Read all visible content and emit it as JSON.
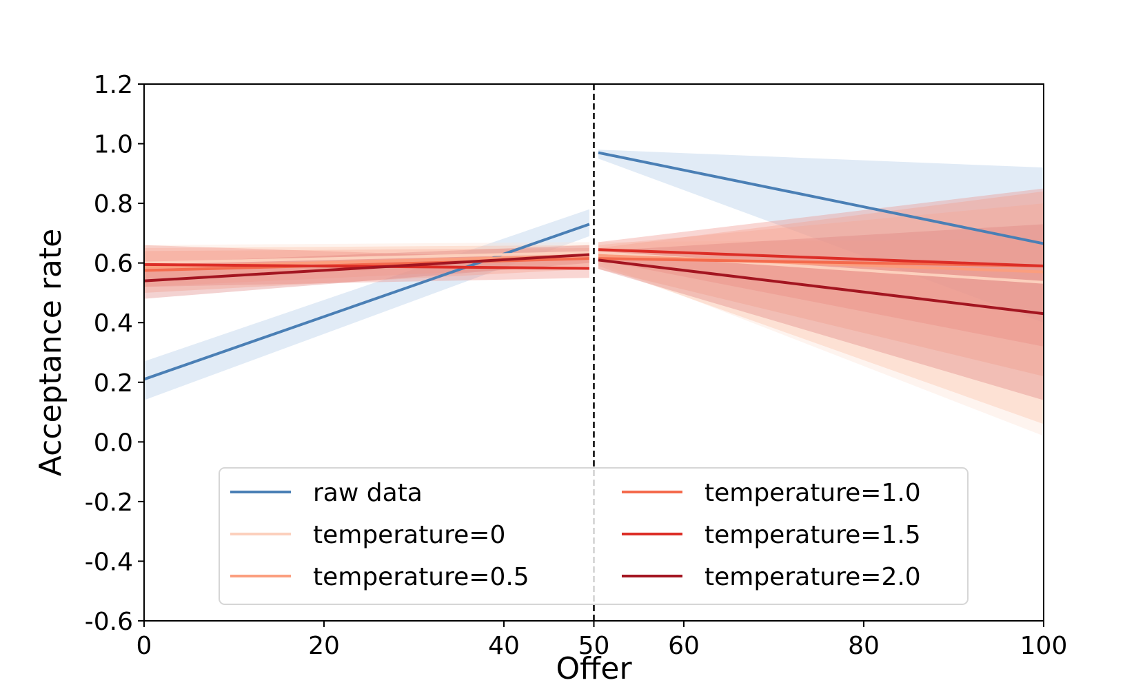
{
  "chart_data": {
    "type": "line",
    "xlabel": "Offer",
    "ylabel": "Acceptance rate",
    "xlim": [
      0,
      100
    ],
    "ylim": [
      -0.6,
      1.2
    ],
    "x_ticks": [
      0,
      20,
      40,
      50,
      60,
      80,
      100
    ],
    "y_ticks": [
      -0.6,
      -0.4,
      -0.2,
      0.0,
      0.2,
      0.4,
      0.6,
      0.8,
      1.0,
      1.2
    ],
    "x_tick_labels": [
      "0",
      "20",
      "40",
      "50",
      "60",
      "80",
      "100"
    ],
    "y_tick_labels": [
      "-0.6",
      "-0.4",
      "-0.2",
      "0.0",
      "0.2",
      "0.4",
      "0.6",
      "0.8",
      "1.0",
      "1.2"
    ],
    "vline": {
      "x": 50,
      "style": "dashed",
      "color": "#000000"
    },
    "grid": false,
    "legend": {
      "placement": "lower-center",
      "columns": 2
    },
    "series": [
      {
        "name": "raw data",
        "color": "#4a7fb5",
        "band_color": "#a9c6e6",
        "segments": [
          {
            "x": [
              0,
              49.5
            ],
            "y": [
              0.21,
              0.73
            ],
            "lower": [
              0.14,
              0.69
            ],
            "upper": [
              0.27,
              0.78
            ]
          },
          {
            "x": [
              50.5,
              100
            ],
            "y": [
              0.97,
              0.665
            ],
            "lower": [
              0.95,
              0.4
            ],
            "upper": [
              0.98,
              0.92
            ]
          }
        ]
      },
      {
        "name": "temperature=0",
        "color": "#fcd0bd",
        "band_color": "#fde0d2",
        "segments": [
          {
            "x": [
              0,
              49.5
            ],
            "y": [
              0.6,
              0.635
            ],
            "lower": [
              0.55,
              0.6
            ],
            "upper": [
              0.66,
              0.67
            ]
          },
          {
            "x": [
              50.5,
              100
            ],
            "y": [
              0.635,
              0.535
            ],
            "lower": [
              0.6,
              0.02
            ],
            "upper": [
              0.67,
              0.68
            ]
          }
        ]
      },
      {
        "name": "temperature=0.5",
        "color": "#fb9e7e",
        "band_color": "#fcbca4",
        "segments": [
          {
            "x": [
              0,
              49.5
            ],
            "y": [
              0.585,
              0.625
            ],
            "lower": [
              0.52,
              0.59
            ],
            "upper": [
              0.65,
              0.66
            ]
          },
          {
            "x": [
              50.5,
              100
            ],
            "y": [
              0.625,
              0.57
            ],
            "lower": [
              0.59,
              0.06
            ],
            "upper": [
              0.66,
              0.8
            ]
          }
        ]
      },
      {
        "name": "temperature=1.0",
        "color": "#f46a4c",
        "band_color": "#f9a68e",
        "segments": [
          {
            "x": [
              0,
              49.5
            ],
            "y": [
              0.575,
              0.615
            ],
            "lower": [
              0.5,
              0.58
            ],
            "upper": [
              0.64,
              0.65
            ]
          },
          {
            "x": [
              50.5,
              100
            ],
            "y": [
              0.615,
              0.59
            ],
            "lower": [
              0.58,
              0.22
            ],
            "upper": [
              0.65,
              0.84
            ]
          }
        ]
      },
      {
        "name": "temperature=1.5",
        "color": "#dc2d26",
        "band_color": "#ee8a80",
        "segments": [
          {
            "x": [
              0,
              49.5
            ],
            "y": [
              0.595,
              0.582
            ],
            "lower": [
              0.52,
              0.55
            ],
            "upper": [
              0.66,
              0.61
            ]
          },
          {
            "x": [
              50.5,
              100
            ],
            "y": [
              0.645,
              0.59
            ],
            "lower": [
              0.61,
              0.32
            ],
            "upper": [
              0.67,
              0.85
            ]
          }
        ]
      },
      {
        "name": "temperature=2.0",
        "color": "#a31520",
        "band_color": "#dd7d7b",
        "segments": [
          {
            "x": [
              0,
              49.5
            ],
            "y": [
              0.54,
              0.628
            ],
            "lower": [
              0.48,
              0.6
            ],
            "upper": [
              0.6,
              0.66
            ]
          },
          {
            "x": [
              50.5,
              100
            ],
            "y": [
              0.61,
              0.43
            ],
            "lower": [
              0.58,
              0.14
            ],
            "upper": [
              0.64,
              0.73
            ]
          }
        ]
      }
    ]
  }
}
